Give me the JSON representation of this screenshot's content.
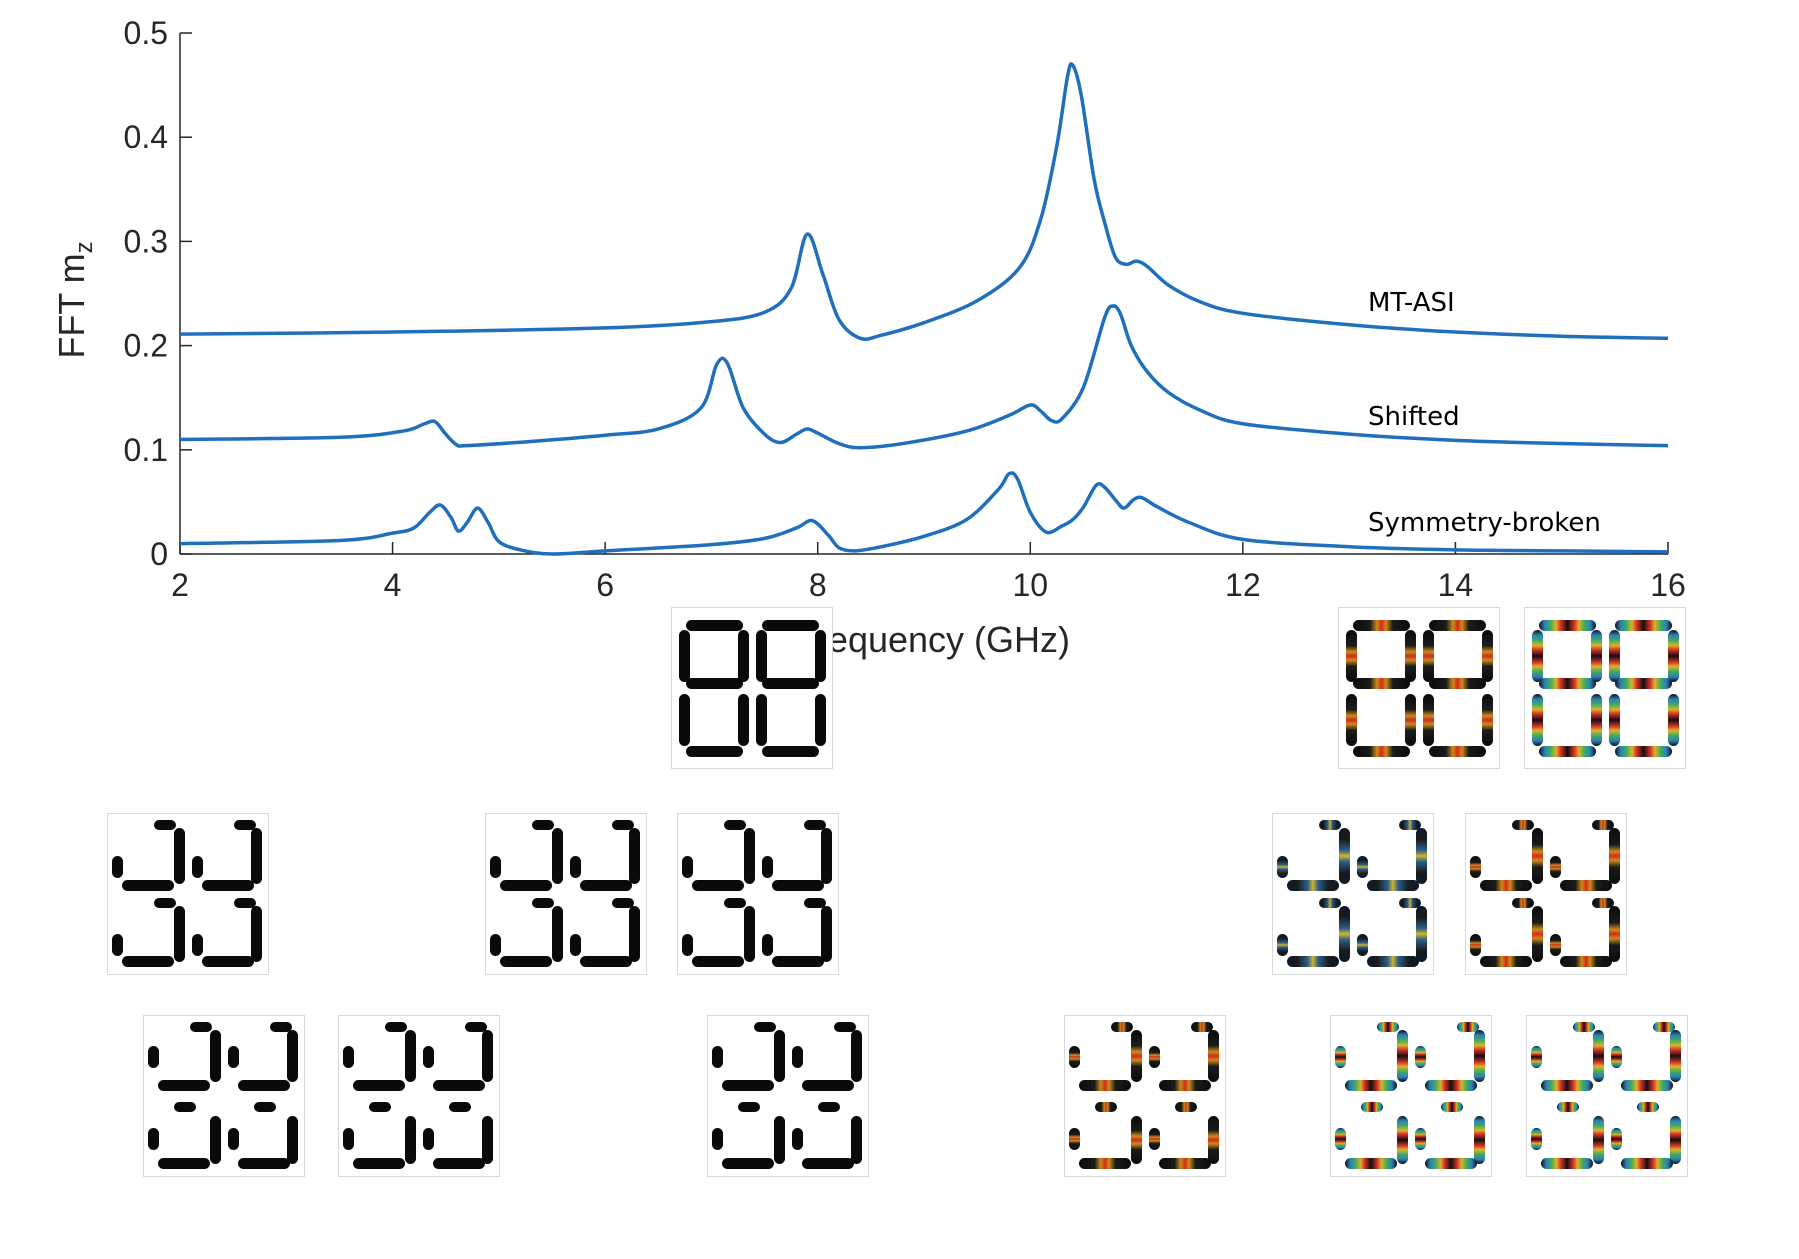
{
  "chart_data": {
    "type": "line",
    "title": "",
    "xlabel": "Frequency (GHz)",
    "ylabel_main": "FFT m",
    "ylabel_sub": "z",
    "xlim": [
      2,
      16
    ],
    "ylim": [
      0,
      0.5
    ],
    "x_ticks": [
      "2",
      "4",
      "6",
      "8",
      "10",
      "12",
      "14",
      "16"
    ],
    "y_ticks": [
      "0",
      "0.1",
      "0.2",
      "0.3",
      "0.4",
      "0.5"
    ],
    "grid": false,
    "line_color": "#1f6fbd",
    "series": [
      {
        "name": "MT-ASI",
        "x": [
          2,
          4,
          6,
          7,
          7.5,
          7.75,
          7.9,
          8.05,
          8.2,
          8.4,
          8.6,
          9,
          9.5,
          9.9,
          10.1,
          10.25,
          10.35,
          10.4,
          10.48,
          10.6,
          10.7,
          10.8,
          10.9,
          11,
          11.1,
          11.3,
          11.6,
          12,
          13,
          14,
          15,
          16
        ],
        "y": [
          0.211,
          0.213,
          0.217,
          0.223,
          0.232,
          0.255,
          0.307,
          0.268,
          0.225,
          0.207,
          0.21,
          0.222,
          0.243,
          0.275,
          0.322,
          0.392,
          0.458,
          0.469,
          0.44,
          0.36,
          0.318,
          0.285,
          0.278,
          0.281,
          0.276,
          0.258,
          0.242,
          0.231,
          0.22,
          0.213,
          0.209,
          0.207
        ]
      },
      {
        "name": "Shifted",
        "x": [
          2,
          3.5,
          4.1,
          4.3,
          4.4,
          4.5,
          4.6,
          4.7,
          5.3,
          6,
          6.5,
          6.9,
          7.05,
          7.15,
          7.3,
          7.5,
          7.65,
          7.8,
          7.9,
          8.0,
          8.2,
          8.4,
          8.8,
          9.4,
          9.8,
          10.0,
          10.1,
          10.2,
          10.3,
          10.5,
          10.7,
          10.78,
          10.85,
          10.95,
          11.1,
          11.3,
          11.6,
          12,
          13,
          14,
          15,
          16
        ],
        "y": [
          0.11,
          0.112,
          0.118,
          0.125,
          0.127,
          0.115,
          0.105,
          0.104,
          0.108,
          0.114,
          0.12,
          0.14,
          0.182,
          0.183,
          0.14,
          0.115,
          0.107,
          0.115,
          0.12,
          0.116,
          0.106,
          0.102,
          0.106,
          0.118,
          0.133,
          0.143,
          0.137,
          0.128,
          0.13,
          0.16,
          0.227,
          0.238,
          0.23,
          0.2,
          0.175,
          0.155,
          0.138,
          0.125,
          0.115,
          0.109,
          0.106,
          0.104
        ]
      },
      {
        "name": "Symmetry-broken",
        "x": [
          2,
          3.5,
          4.0,
          4.2,
          4.35,
          4.45,
          4.55,
          4.62,
          4.7,
          4.8,
          4.9,
          5.0,
          5.2,
          5.5,
          6,
          7,
          7.5,
          7.8,
          7.95,
          8.1,
          8.2,
          8.35,
          8.6,
          9.0,
          9.4,
          9.7,
          9.8,
          9.88,
          10.0,
          10.15,
          10.3,
          10.4,
          10.5,
          10.62,
          10.7,
          10.8,
          10.88,
          10.97,
          11.05,
          11.2,
          11.5,
          12,
          13,
          14,
          15,
          16
        ],
        "y": [
          0.01,
          0.013,
          0.02,
          0.025,
          0.04,
          0.047,
          0.035,
          0.022,
          0.03,
          0.044,
          0.03,
          0.012,
          0.004,
          0.0,
          0.003,
          0.009,
          0.015,
          0.025,
          0.032,
          0.018,
          0.006,
          0.003,
          0.007,
          0.017,
          0.033,
          0.062,
          0.077,
          0.072,
          0.04,
          0.021,
          0.027,
          0.033,
          0.045,
          0.066,
          0.064,
          0.052,
          0.044,
          0.052,
          0.054,
          0.045,
          0.03,
          0.014,
          0.007,
          0.004,
          0.003,
          0.002
        ]
      }
    ]
  },
  "mode_images": {
    "rows": [
      {
        "name": "MT-ASI",
        "pattern": "full",
        "maps": [
          "none",
          "red-center",
          "multi-band"
        ]
      },
      {
        "name": "Shifted",
        "pattern": "shifted",
        "maps": [
          "none",
          "none",
          "none",
          "mixed",
          "red-center"
        ]
      },
      {
        "name": "Symmetry-broken",
        "pattern": "broken",
        "maps": [
          "none",
          "none",
          "none",
          "red-center",
          "multi-band",
          "multi-band"
        ]
      }
    ]
  }
}
